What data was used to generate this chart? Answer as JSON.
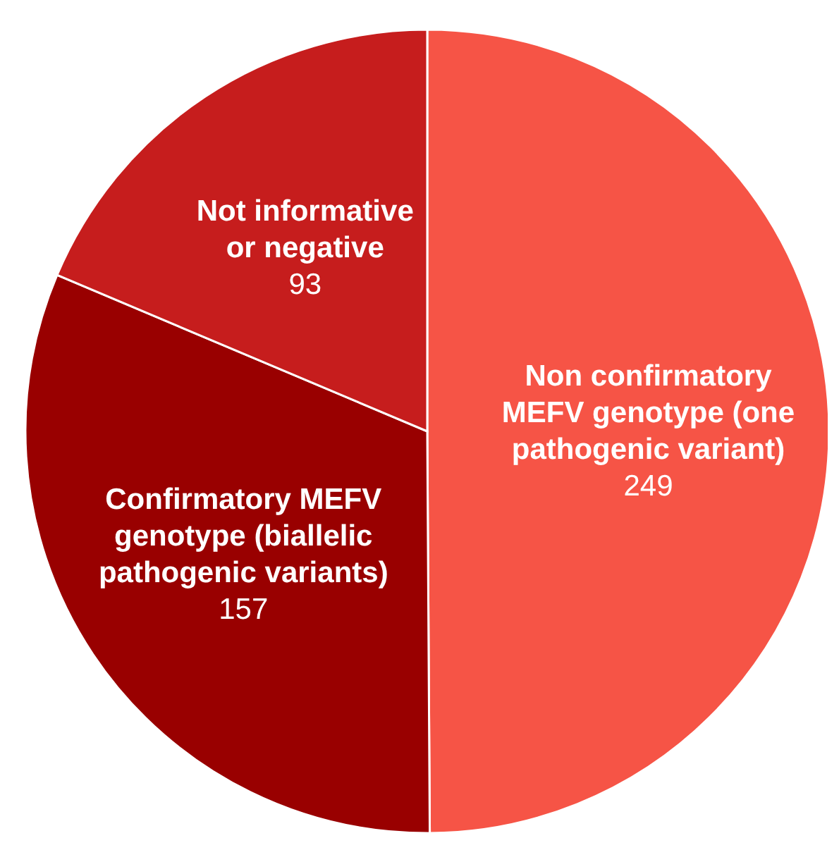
{
  "chart_data": {
    "type": "pie",
    "categories": [
      "Non confirmatory MEFV genotype (one pathogenic variant)",
      "Confirmatory MEFV genotype (biallelic pathogenic variants)",
      "Not informative or negative"
    ],
    "values": [
      249,
      157,
      93
    ],
    "colors": [
      "#f65446",
      "#990000",
      "#c61d1d"
    ],
    "data_labels": true,
    "legend": false
  }
}
